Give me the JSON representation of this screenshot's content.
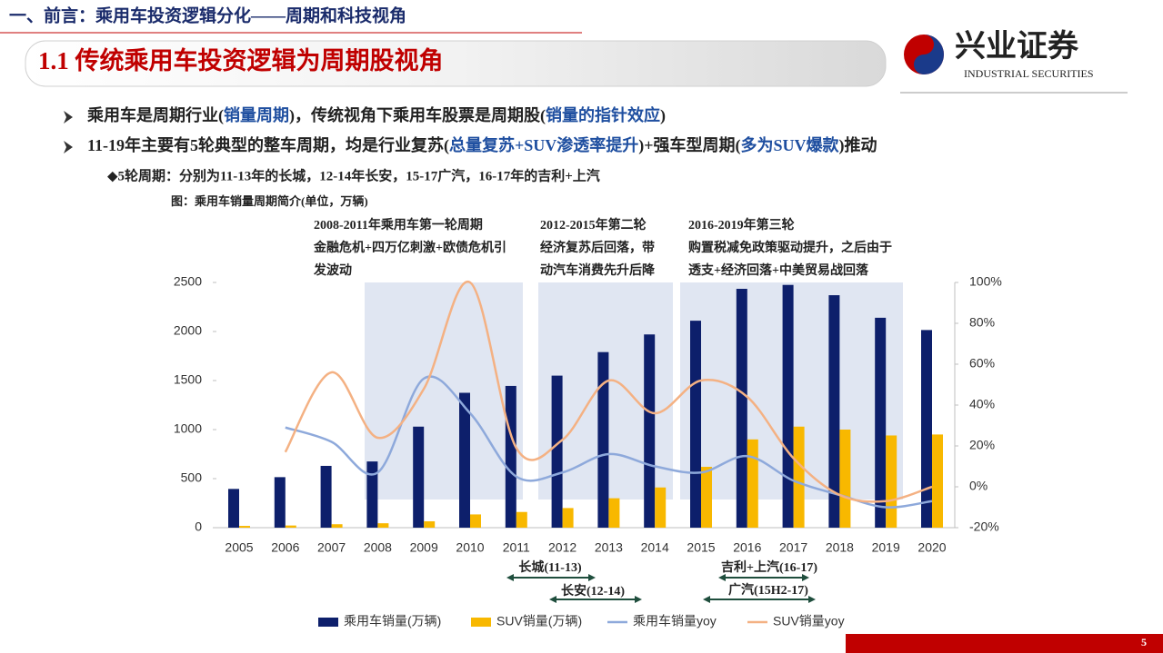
{
  "header": {
    "section": "一、前言：乘用车投资逻辑分化——周期和科技视角",
    "title": "1.1 传统乘用车投资逻辑为周期股视角",
    "logo_cn": "兴业证券",
    "logo_en": "INDUSTRIAL SECURITIES"
  },
  "bullets": [
    [
      {
        "text": "乘用车是周期行业("
      },
      {
        "text": "销量周期",
        "color": "#1f4fa0"
      },
      {
        "text": ")，传统视角下乘用车股票是周期股("
      },
      {
        "text": "销量的指针效应",
        "color": "#1f4fa0"
      },
      {
        "text": ")"
      }
    ],
    [
      {
        "text": "11-19年主要有5轮典型的整车周期，均是行业复苏("
      },
      {
        "text": "总量复苏+SUV渗透率提升",
        "color": "#1f4fa0"
      },
      {
        "text": ")+强车型周期("
      },
      {
        "text": "多为SUV爆款",
        "color": "#1f4fa0"
      },
      {
        "text": ")推动"
      }
    ]
  ],
  "sub_bullet": "◆5轮周期：分别为11-13年的长城，12-14年长安，15-17广汽，16-17年的吉利+上汽",
  "chart_data": {
    "type": "bar-line",
    "title": "图：乘用车销量周期简介(单位，万辆)",
    "categories": [
      "2005",
      "2006",
      "2007",
      "2008",
      "2009",
      "2010",
      "2011",
      "2012",
      "2013",
      "2014",
      "2015",
      "2016",
      "2017",
      "2018",
      "2019",
      "2020"
    ],
    "series": [
      {
        "name": "乘用车销量(万辆)",
        "type": "bar",
        "color": "#0d1f6b",
        "values": [
          395,
          515,
          630,
          675,
          1030,
          1375,
          1445,
          1550,
          1790,
          1970,
          2110,
          2435,
          2475,
          2370,
          2140,
          2015
        ]
      },
      {
        "name": "SUV销量(万辆)",
        "type": "bar",
        "color": "#f8b800",
        "values": [
          18,
          22,
          35,
          45,
          65,
          135,
          160,
          200,
          300,
          410,
          620,
          900,
          1030,
          1000,
          940,
          950
        ]
      },
      {
        "name": "乘用车销量yoy",
        "type": "line",
        "axis": "y2",
        "color": "#8ea9db",
        "values": [
          null,
          29,
          22,
          7,
          53,
          36,
          5,
          7,
          16,
          10,
          7,
          15,
          3,
          -4,
          -10,
          -7
        ]
      },
      {
        "name": "SUV销量yoy",
        "type": "line",
        "axis": "y2",
        "color": "#f4b183",
        "values": [
          null,
          17,
          56,
          24,
          48,
          100,
          19,
          23,
          52,
          36,
          52,
          44,
          14,
          -4,
          -7,
          0
        ]
      }
    ],
    "ylim": [
      0,
      2500
    ],
    "yticks": [
      0,
      500,
      1000,
      1500,
      2000,
      2500
    ],
    "y2lim": [
      -20,
      100
    ],
    "y2ticks": [
      {
        "value": -20,
        "label": "-20%"
      },
      {
        "value": 0,
        "label": "0%"
      },
      {
        "value": 20,
        "label": "20%"
      },
      {
        "value": 40,
        "label": "40%"
      },
      {
        "value": 60,
        "label": "60%"
      },
      {
        "value": 80,
        "label": "80%"
      },
      {
        "value": 100,
        "label": "100%"
      }
    ],
    "period_notes": [
      [
        "2008-2011年乘用车第一轮周期",
        "金融危机+四万亿刺激+欧债危机引",
        "发波动"
      ],
      [
        "2012-2015年第二轮",
        "经济复苏后回落，带",
        "动汽车消费先升后降"
      ],
      [
        "2016-2019年第三轮",
        "购置税减免政策驱动提升，之后由于",
        "透支+经济回落+中美贸易战回落"
      ]
    ],
    "cycle_labels": [
      "长城(11-13)",
      "长安(12-14)",
      "吉利+上汽(16-17)",
      "广汽(15H2-17)"
    ],
    "legend": "bottom"
  },
  "page_number": 5
}
